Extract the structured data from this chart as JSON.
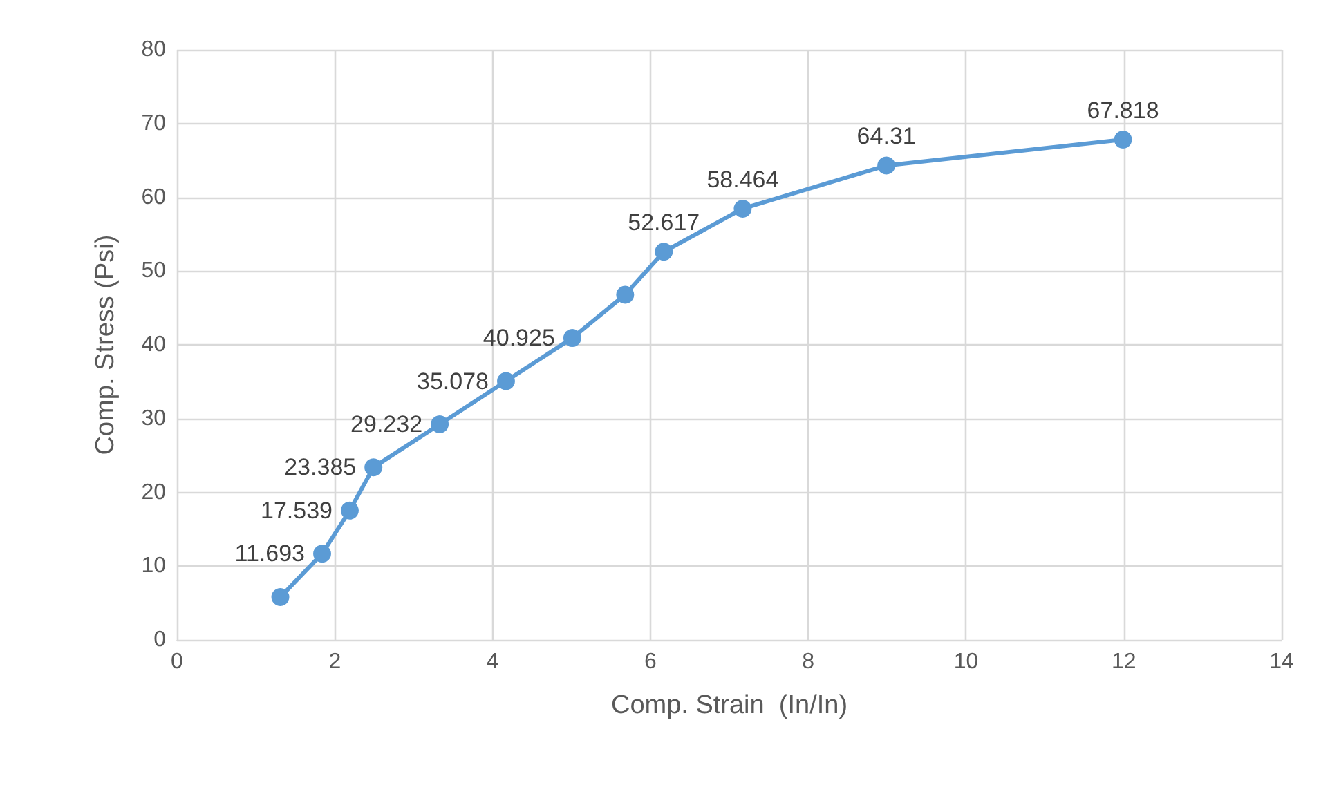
{
  "chart_data": {
    "type": "line",
    "xlabel": "Comp. Strain  (In/In)",
    "ylabel": "Comp. Stress (Psi)",
    "x": [
      1.31,
      1.84,
      2.19,
      2.49,
      3.33,
      4.17,
      5.01,
      5.68,
      6.17,
      7.17,
      8.99,
      11.99
    ],
    "series": [
      {
        "color": "#5b9bd5",
        "values": [
          5.8,
          11.693,
          17.539,
          23.385,
          29.232,
          35.078,
          40.925,
          46.8,
          52.617,
          58.464,
          64.31,
          67.818
        ],
        "value_labels": [
          null,
          "11.693",
          "17.539",
          "23.385",
          "29.232",
          "35.078",
          "40.925",
          null,
          "52.617",
          "58.464",
          "64.31",
          "67.818"
        ]
      }
    ],
    "xlim": [
      0,
      14
    ],
    "xticks": [
      0,
      2,
      4,
      6,
      8,
      10,
      12,
      14
    ],
    "ylim": [
      0,
      80
    ],
    "yticks": [
      0,
      10,
      20,
      30,
      40,
      50,
      60,
      70,
      80
    ],
    "grid": true,
    "marker": "circle",
    "line_style": "solid"
  }
}
